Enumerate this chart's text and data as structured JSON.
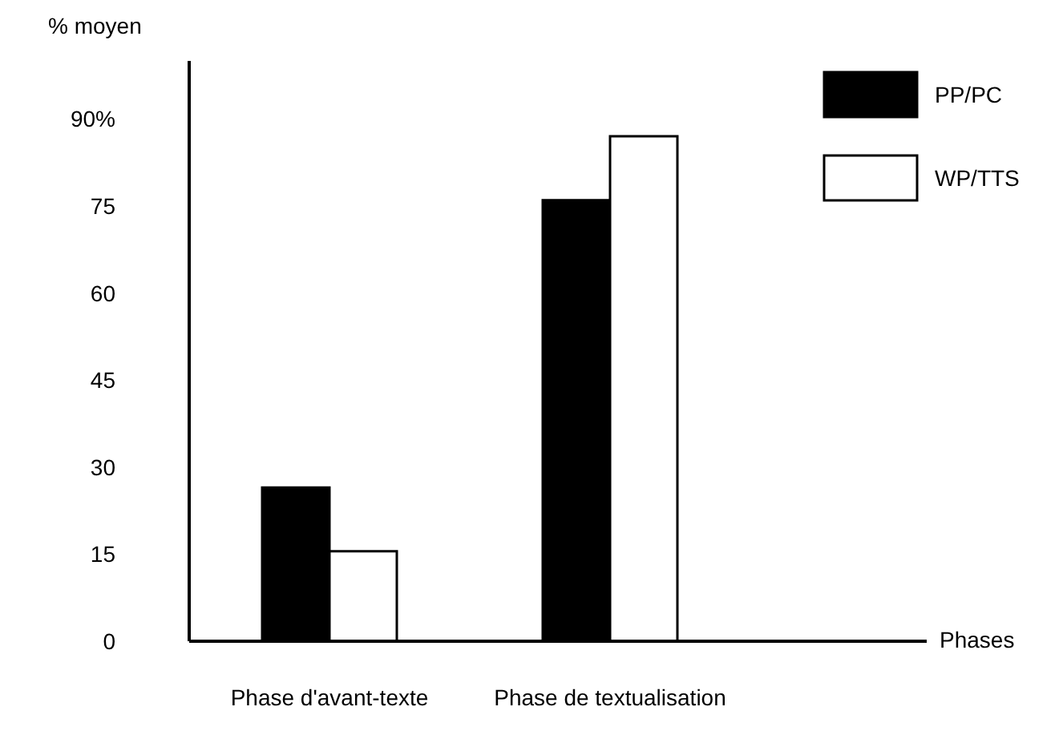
{
  "chart_data": {
    "type": "bar",
    "ylabel": "% moyen",
    "xlabel": "Phases",
    "categories": [
      "Phase d'avant-texte",
      "Phase de textualisation"
    ],
    "series": [
      {
        "name": "PP/PC",
        "color": "#000000",
        "values": [
          26.5,
          76
        ]
      },
      {
        "name": "WP/TTS",
        "color": "#ffffff",
        "values": [
          15.5,
          87
        ]
      }
    ],
    "ylim": [
      0,
      100
    ],
    "yticks": [
      0,
      15,
      30,
      45,
      60,
      75,
      {
        "value": 90,
        "label": "90%"
      }
    ],
    "legend": "top right"
  }
}
